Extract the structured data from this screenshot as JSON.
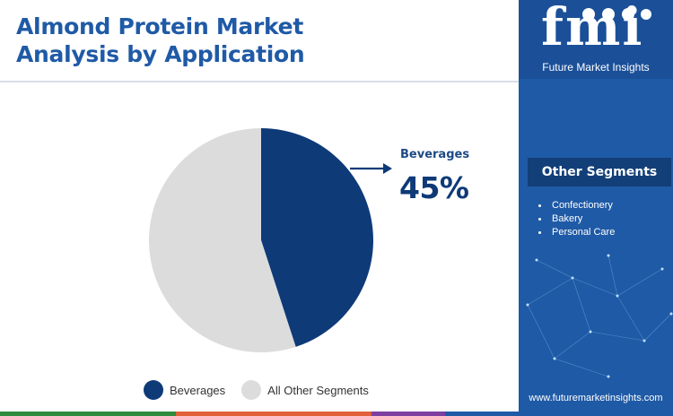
{
  "header": {
    "title_line1": "Almond Protein Market",
    "title_line2": "Analysis by Application"
  },
  "chart_data": {
    "type": "pie",
    "title": "Almond Protein Market Analysis by Application",
    "slices": [
      {
        "name": "Beverages",
        "value": 45,
        "color": "#0e3a78"
      },
      {
        "name": "All Other Segments",
        "value": 55,
        "color": "#dcdcdc"
      }
    ],
    "legend_position": "bottom",
    "callout": {
      "label": "Beverages",
      "value_text": "45%"
    }
  },
  "legend": {
    "items": [
      {
        "label": "Beverages",
        "color": "#0e3a78"
      },
      {
        "label": "All Other Segments",
        "color": "#dcdcdc"
      }
    ]
  },
  "sidebar": {
    "logo_text": "fmi",
    "logo_subtitle": "Future Market Insights",
    "segments_title": "Other Segments",
    "segments": [
      "Confectionery",
      "Bakery",
      "Personal Care"
    ],
    "website": "www.futuremarketinsights.com"
  },
  "colors": {
    "title": "#1f5aa6",
    "panel": "#1f5aa6",
    "bottom_bar": [
      "#2f8a3b",
      "#e0603a",
      "#7e3fa0",
      "#1f5aa6"
    ]
  }
}
